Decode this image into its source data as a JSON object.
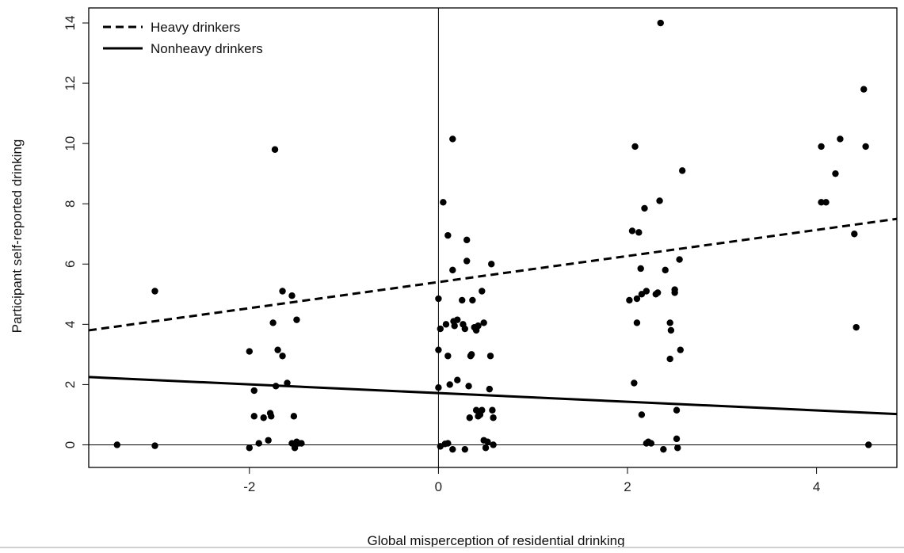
{
  "chart_data": {
    "type": "scatter",
    "title": "",
    "xlabel": "Global misperception of residential drinking",
    "ylabel": "Participant self-reported drinking",
    "xlim": [
      -3.7,
      4.85
    ],
    "ylim": [
      -0.75,
      14.5
    ],
    "x_ticks": [
      -2,
      0,
      2,
      4
    ],
    "y_ticks": [
      0,
      2,
      4,
      6,
      8,
      10,
      12,
      14
    ],
    "grid": false,
    "reference_lines": {
      "vertical_x": 0,
      "horizontal_y": 0
    },
    "legend": {
      "position": "top-left",
      "entries": [
        {
          "label": "Heavy drinkers",
          "style": "dashed"
        },
        {
          "label": "Nonheavy drinkers",
          "style": "solid"
        }
      ]
    },
    "series": [
      {
        "type": "scatter",
        "color": "#000000",
        "points": [
          [
            -3.4,
            0
          ],
          [
            -3.0,
            5.1
          ],
          [
            -3.0,
            -0.03
          ],
          [
            -2.0,
            3.1
          ],
          [
            -2.0,
            -0.1
          ],
          [
            -1.95,
            1.8
          ],
          [
            -1.95,
            0.95
          ],
          [
            -1.9,
            0.05
          ],
          [
            -1.85,
            0.9
          ],
          [
            -1.8,
            0.15
          ],
          [
            -1.78,
            1.05
          ],
          [
            -1.77,
            0.95
          ],
          [
            -1.75,
            4.05
          ],
          [
            -1.73,
            9.8
          ],
          [
            -1.72,
            1.95
          ],
          [
            -1.7,
            3.15
          ],
          [
            -1.65,
            2.95
          ],
          [
            -1.65,
            5.1
          ],
          [
            -1.6,
            2.05
          ],
          [
            -1.55,
            0.05
          ],
          [
            -1.55,
            4.95
          ],
          [
            -1.53,
            0.95
          ],
          [
            -1.52,
            -0.1
          ],
          [
            -1.5,
            0.1
          ],
          [
            -1.5,
            4.15
          ],
          [
            -1.48,
            0.05
          ],
          [
            -1.45,
            0.05
          ],
          [
            0.0,
            3.15
          ],
          [
            0.0,
            4.85
          ],
          [
            0.0,
            1.9
          ],
          [
            0.02,
            3.85
          ],
          [
            0.02,
            -0.05
          ],
          [
            0.05,
            8.05
          ],
          [
            0.08,
            4.0
          ],
          [
            0.1,
            2.95
          ],
          [
            0.1,
            6.95
          ],
          [
            0.1,
            0.05
          ],
          [
            0.12,
            2.0
          ],
          [
            0.15,
            5.8
          ],
          [
            0.15,
            10.15
          ],
          [
            0.16,
            4.1
          ],
          [
            0.17,
            3.95
          ],
          [
            0.2,
            2.15
          ],
          [
            0.2,
            4.15
          ],
          [
            0.25,
            4.8
          ],
          [
            0.26,
            4.0
          ],
          [
            0.28,
            3.85
          ],
          [
            0.3,
            6.8
          ],
          [
            0.3,
            6.1
          ],
          [
            0.32,
            1.95
          ],
          [
            0.34,
            2.95
          ],
          [
            0.35,
            3.0
          ],
          [
            0.36,
            4.8
          ],
          [
            0.38,
            3.9
          ],
          [
            0.4,
            3.8
          ],
          [
            0.4,
            1.15
          ],
          [
            0.42,
            3.95
          ],
          [
            0.42,
            0.95
          ],
          [
            0.44,
            1.0
          ],
          [
            0.46,
            5.1
          ],
          [
            0.48,
            4.05
          ],
          [
            0.48,
            0.15
          ],
          [
            0.52,
            0.1
          ],
          [
            0.54,
            1.85
          ],
          [
            0.55,
            2.95
          ],
          [
            0.56,
            6.0
          ],
          [
            0.57,
            1.15
          ],
          [
            0.58,
            0.9
          ],
          [
            0.58,
            0.0
          ],
          [
            0.15,
            -0.15
          ],
          [
            0.28,
            -0.15
          ],
          [
            0.5,
            -0.1
          ],
          [
            0.33,
            0.9
          ],
          [
            0.07,
            0.03
          ],
          [
            0.46,
            1.15
          ],
          [
            2.02,
            4.8
          ],
          [
            2.05,
            7.1
          ],
          [
            2.07,
            2.05
          ],
          [
            2.08,
            9.9
          ],
          [
            2.1,
            4.85
          ],
          [
            2.1,
            4.05
          ],
          [
            2.12,
            7.05
          ],
          [
            2.14,
            5.85
          ],
          [
            2.15,
            5.0
          ],
          [
            2.15,
            1.0
          ],
          [
            2.18,
            7.85
          ],
          [
            2.2,
            0.05
          ],
          [
            2.2,
            5.1
          ],
          [
            2.22,
            0.1
          ],
          [
            2.25,
            0.05
          ],
          [
            2.3,
            5.0
          ],
          [
            2.32,
            5.05
          ],
          [
            2.34,
            8.1
          ],
          [
            2.35,
            14.0
          ],
          [
            2.38,
            -0.15
          ],
          [
            2.4,
            5.8
          ],
          [
            2.45,
            4.05
          ],
          [
            2.45,
            2.85
          ],
          [
            2.46,
            3.8
          ],
          [
            2.5,
            5.15
          ],
          [
            2.5,
            5.05
          ],
          [
            2.52,
            1.15
          ],
          [
            2.52,
            0.2
          ],
          [
            2.53,
            -0.1
          ],
          [
            2.55,
            6.15
          ],
          [
            2.56,
            3.15
          ],
          [
            2.58,
            9.1
          ],
          [
            4.05,
            8.05
          ],
          [
            4.05,
            9.9
          ],
          [
            4.1,
            8.05
          ],
          [
            4.2,
            9.0
          ],
          [
            4.25,
            10.15
          ],
          [
            4.4,
            7.0
          ],
          [
            4.42,
            3.9
          ],
          [
            4.5,
            11.8
          ],
          [
            4.52,
            9.9
          ],
          [
            4.55,
            0.0
          ]
        ]
      },
      {
        "name": "Heavy drinkers",
        "type": "line",
        "style": "dashed",
        "x": [
          -3.7,
          4.85
        ],
        "y": [
          3.8,
          7.5
        ]
      },
      {
        "name": "Nonheavy drinkers",
        "type": "line",
        "style": "solid",
        "x": [
          -3.7,
          4.85
        ],
        "y": [
          2.25,
          1.02
        ]
      }
    ]
  }
}
